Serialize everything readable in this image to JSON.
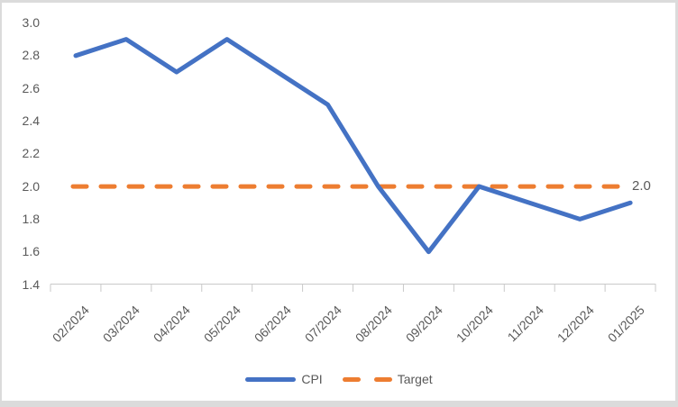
{
  "chart_data": {
    "type": "line",
    "title": "",
    "xlabel": "",
    "ylabel": "",
    "categories": [
      "02/2024",
      "03/2024",
      "04/2024",
      "05/2024",
      "06/2024",
      "07/2024",
      "08/2024",
      "09/2024",
      "10/2024",
      "11/2024",
      "12/2024",
      "01/2025"
    ],
    "series": [
      {
        "name": "CPI",
        "type": "line",
        "color": "#4472C4",
        "dash": "solid",
        "values": [
          2.8,
          2.9,
          2.7,
          2.9,
          2.7,
          2.5,
          2.0,
          1.6,
          2.0,
          1.9,
          1.8,
          1.9
        ]
      },
      {
        "name": "Target",
        "type": "constant-line",
        "color": "#ED7D31",
        "dash": "dashed",
        "value": 2.0
      }
    ],
    "end_label": "2.0",
    "ylim": [
      1.4,
      3.0
    ],
    "ytick_step": 0.2,
    "ytick_labels": [
      "3.0",
      "2.8",
      "2.6",
      "2.4",
      "2.2",
      "2.0",
      "1.8",
      "1.6",
      "1.4"
    ],
    "grid": false,
    "legend": {
      "position": "bottom",
      "items": [
        {
          "label": "CPI"
        },
        {
          "label": "Target"
        }
      ]
    }
  },
  "colors": {
    "cpi_line": "#4472C4",
    "target_line": "#ED7D31",
    "axis_text": "#595959",
    "axis_line": "#C9C9C9",
    "frame_border": "#DBDBDB",
    "background": "#FFFFFF"
  }
}
